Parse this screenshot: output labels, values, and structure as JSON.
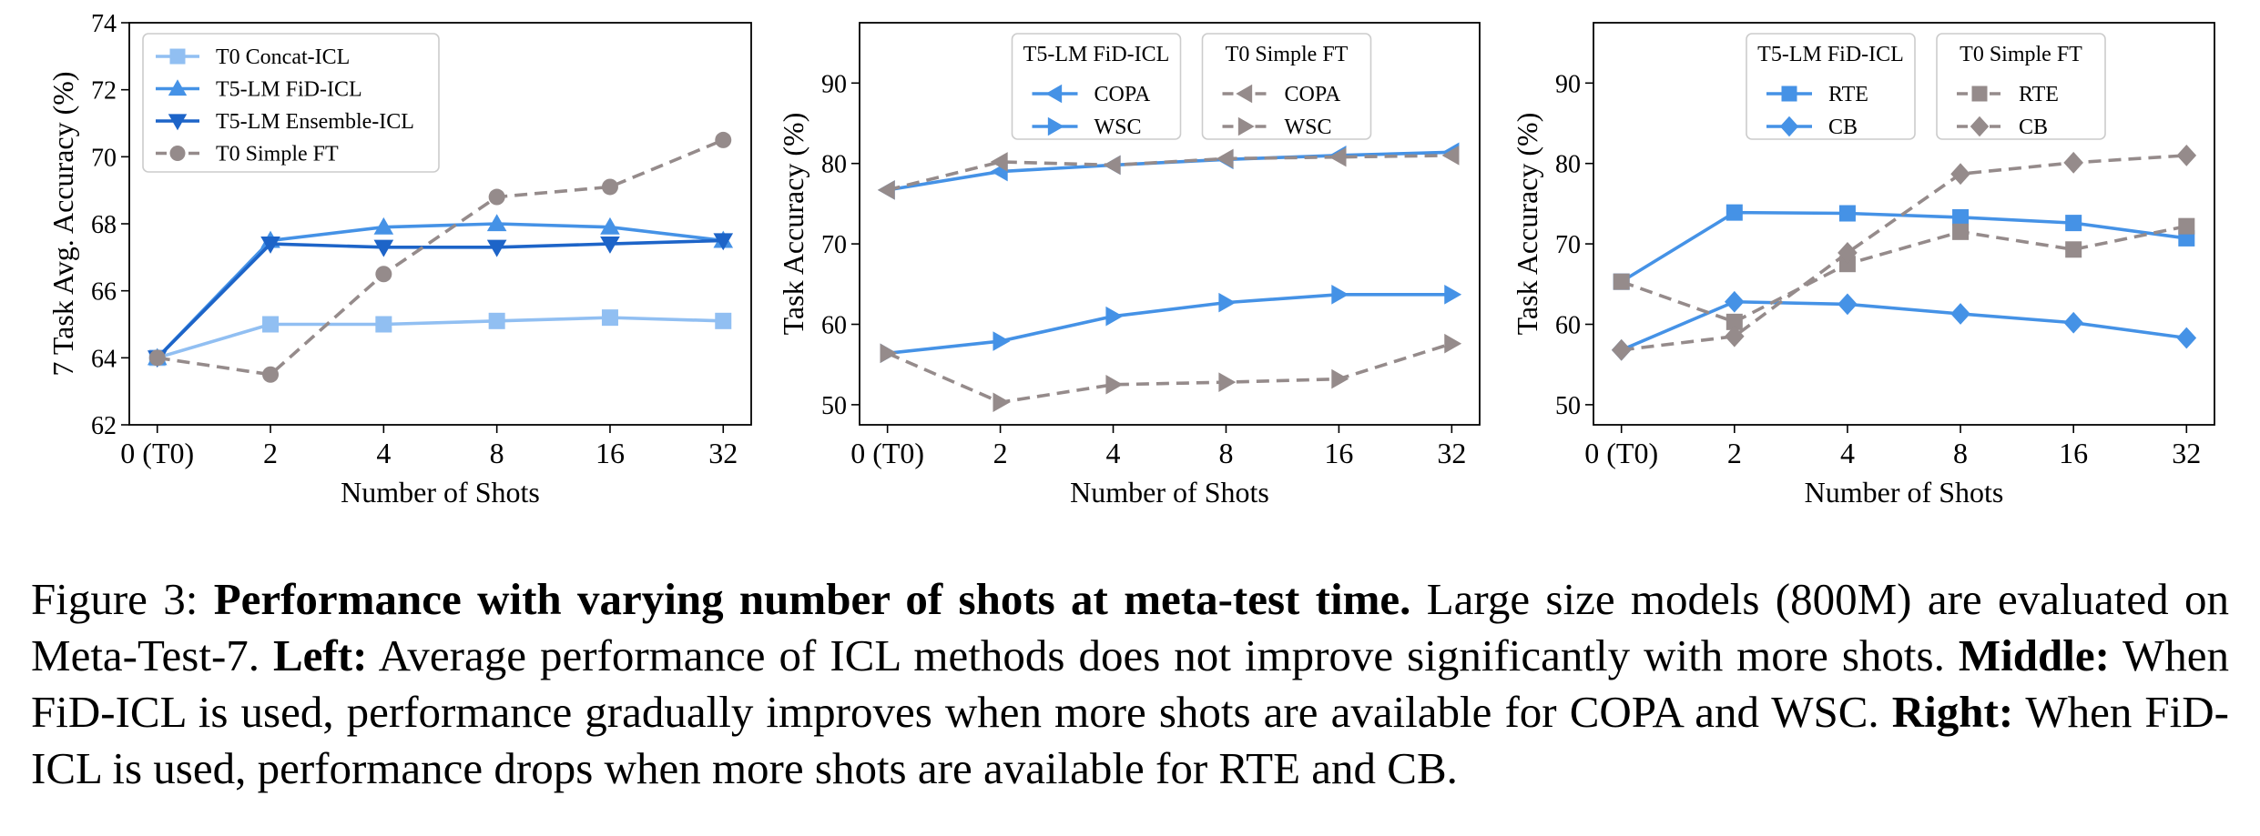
{
  "chart_data": [
    {
      "type": "line",
      "categories": [
        "0 (T0)",
        "2",
        "4",
        "8",
        "16",
        "32"
      ],
      "xlabel": "Number of Shots",
      "ylabel": "7 Task Avg. Accuracy (%)",
      "ylim": [
        62,
        74
      ],
      "yticks": [
        62,
        64,
        66,
        68,
        70,
        72,
        74
      ],
      "grid": false,
      "legend": {
        "placement": "top-left",
        "groups": []
      },
      "series": [
        {
          "name": "T0 Concat-ICL",
          "values": [
            64.0,
            65.0,
            65.0,
            65.1,
            65.2,
            65.1
          ],
          "color": "#91bff2",
          "marker": "square",
          "dash": false
        },
        {
          "name": "T5-LM FiD-ICL",
          "values": [
            64.0,
            67.5,
            67.9,
            68.0,
            67.9,
            67.5
          ],
          "color": "#4592e6",
          "marker": "triangle-up",
          "dash": false
        },
        {
          "name": "T5-LM Ensemble-ICL",
          "values": [
            64.0,
            67.4,
            67.3,
            67.3,
            67.4,
            67.5
          ],
          "color": "#1d64c8",
          "marker": "triangle-down",
          "dash": false
        },
        {
          "name": "T0 Simple FT",
          "values": [
            64.0,
            63.5,
            66.5,
            68.8,
            69.1,
            70.5
          ],
          "color": "#958b8b",
          "marker": "circle",
          "dash": true
        }
      ]
    },
    {
      "type": "line",
      "categories": [
        "0 (T0)",
        "2",
        "4",
        "8",
        "16",
        "32"
      ],
      "xlabel": "Number of Shots",
      "ylabel": "Task Accuracy (%)",
      "ylim": [
        47.5,
        97.5
      ],
      "yticks": [
        50,
        60,
        70,
        80,
        90
      ],
      "grid": false,
      "legend": {
        "placement": "top-center",
        "groups": [
          "T5-LM FiD-ICL",
          "T0 Simple FT"
        ]
      },
      "series": [
        {
          "name": "COPA",
          "group": 0,
          "values": [
            76.7,
            79.0,
            79.8,
            80.5,
            81.0,
            81.4
          ],
          "color": "#4592e6",
          "marker": "triangle-left",
          "dash": false
        },
        {
          "name": "WSC",
          "group": 0,
          "values": [
            56.4,
            57.9,
            61.0,
            62.7,
            63.7,
            63.7
          ],
          "color": "#4592e6",
          "marker": "triangle-right",
          "dash": false
        },
        {
          "name": "COPA",
          "group": 1,
          "values": [
            76.7,
            80.2,
            79.8,
            80.6,
            80.8,
            81.0
          ],
          "color": "#958b8b",
          "marker": "triangle-left",
          "dash": true
        },
        {
          "name": "WSC",
          "group": 1,
          "values": [
            56.4,
            50.3,
            52.5,
            52.8,
            53.2,
            57.6
          ],
          "color": "#958b8b",
          "marker": "triangle-right",
          "dash": true
        }
      ]
    },
    {
      "type": "line",
      "categories": [
        "0 (T0)",
        "2",
        "4",
        "8",
        "16",
        "32"
      ],
      "xlabel": "Number of Shots",
      "ylabel": "Task Accuracy (%)",
      "ylim": [
        47.5,
        97.5
      ],
      "yticks": [
        50,
        60,
        70,
        80,
        90
      ],
      "grid": false,
      "legend": {
        "placement": "top-center",
        "groups": [
          "T5-LM FiD-ICL",
          "T0 Simple FT"
        ]
      },
      "series": [
        {
          "name": "RTE",
          "group": 0,
          "values": [
            65.3,
            73.9,
            73.8,
            73.3,
            72.6,
            70.7
          ],
          "color": "#4592e6",
          "marker": "square",
          "dash": false
        },
        {
          "name": "CB",
          "group": 0,
          "values": [
            56.8,
            62.8,
            62.5,
            61.3,
            60.2,
            58.3
          ],
          "color": "#4592e6",
          "marker": "diamond",
          "dash": false
        },
        {
          "name": "RTE",
          "group": 1,
          "values": [
            65.3,
            60.3,
            67.5,
            71.5,
            69.3,
            72.2
          ],
          "color": "#958b8b",
          "marker": "square",
          "dash": true
        },
        {
          "name": "CB",
          "group": 1,
          "values": [
            56.8,
            58.5,
            68.9,
            78.7,
            80.1,
            81.0
          ],
          "color": "#958b8b",
          "marker": "diamond",
          "dash": true
        }
      ]
    }
  ],
  "caption": {
    "label": "Figure 3: ",
    "title": "Performance with varying number of shots at meta-test time.",
    "text1": " Large size models (800M) are evaluated on Meta-Test-7. ",
    "left_label": "Left:",
    "left_text": " Average performance of ICL methods does not improve significantly with more shots. ",
    "middle_label": "Middle:",
    "middle_text": " When FiD-ICL is used, performance gradually improves when more shots are available for COPA and WSC. ",
    "right_label": "Right:",
    "right_text": " When FiD-ICL is used, performance drops when more shots are available for RTE and CB."
  }
}
